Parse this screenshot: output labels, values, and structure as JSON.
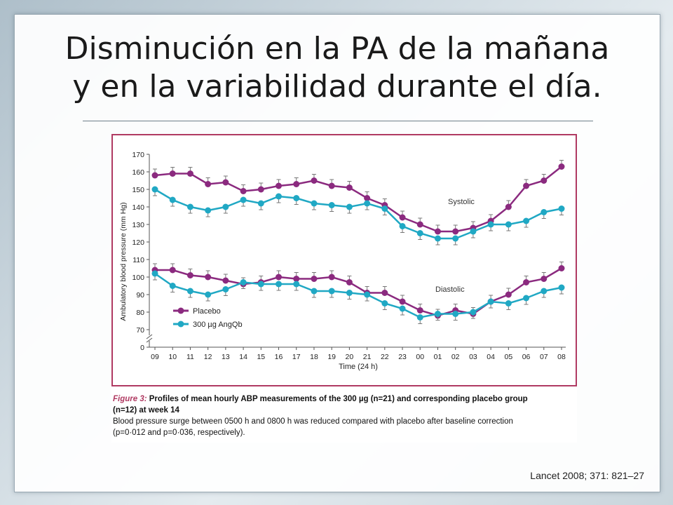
{
  "slide": {
    "title_line1": "Disminución en la PA de la mañana",
    "title_line2": "y en la variabilidad durante el día.",
    "source": "Lancet 2008; 371: 821–27"
  },
  "caption": {
    "fig_label": "Figure 3:",
    "fig_title": "Profiles of mean hourly ABP measurements of the 300 µg (n=21) and corresponding placebo group",
    "fig_title_cont": "(n=12) at week 14",
    "line1": "Blood pressure surge between 0500 h and 0800 h was reduced compared with placebo after baseline correction",
    "line2": "(p=0·012 and p=0·036, respectively)."
  },
  "colors": {
    "placebo": "#8b2a7f",
    "angqb": "#20a8c4",
    "frame": "#b03a62"
  },
  "chart_data": {
    "type": "line",
    "xlabel": "Time (24 h)",
    "ylabel": "Ambulatory blood pressure (mm Hg)",
    "categories": [
      "09",
      "10",
      "11",
      "12",
      "13",
      "14",
      "15",
      "16",
      "17",
      "18",
      "19",
      "20",
      "21",
      "22",
      "23",
      "00",
      "01",
      "02",
      "03",
      "04",
      "05",
      "06",
      "07",
      "08"
    ],
    "yticks": [
      "170",
      "160",
      "150",
      "140",
      "130",
      "120",
      "110",
      "100",
      "90",
      "80",
      "70",
      "0"
    ],
    "ylim": [
      0,
      170
    ],
    "axis_break": "between 0 and 70",
    "legend_position": "left, lower",
    "annotations": [
      "Systolic",
      "Diastolic"
    ],
    "series": [
      {
        "name": "Placebo",
        "group": "Systolic",
        "color_key": "placebo",
        "values": [
          158,
          159,
          159,
          153,
          154,
          149,
          150,
          152,
          153,
          155,
          152,
          151,
          145,
          141,
          134,
          130,
          126,
          126,
          128,
          132,
          140,
          152,
          155,
          163
        ]
      },
      {
        "name": "300 µg AngQb",
        "group": "Systolic",
        "color_key": "angqb",
        "values": [
          150,
          144,
          140,
          138,
          140,
          144,
          142,
          146,
          145,
          142,
          141,
          140,
          142,
          139,
          129,
          125,
          122,
          122,
          126,
          130,
          130,
          132,
          137,
          139
        ]
      },
      {
        "name": "Placebo",
        "group": "Diastolic",
        "color_key": "placebo",
        "values": [
          104,
          104,
          101,
          100,
          98,
          96,
          97,
          100,
          99,
          99,
          100,
          97,
          91,
          91,
          86,
          81,
          78,
          81,
          79,
          86,
          90,
          97,
          99,
          105
        ]
      },
      {
        "name": "300 µg AngQb",
        "group": "Diastolic",
        "color_key": "angqb",
        "values": [
          102,
          95,
          92,
          90,
          93,
          97,
          96,
          96,
          96,
          92,
          92,
          91,
          90,
          85,
          82,
          77,
          79,
          79,
          80,
          86,
          85,
          88,
          92,
          94
        ]
      }
    ]
  }
}
